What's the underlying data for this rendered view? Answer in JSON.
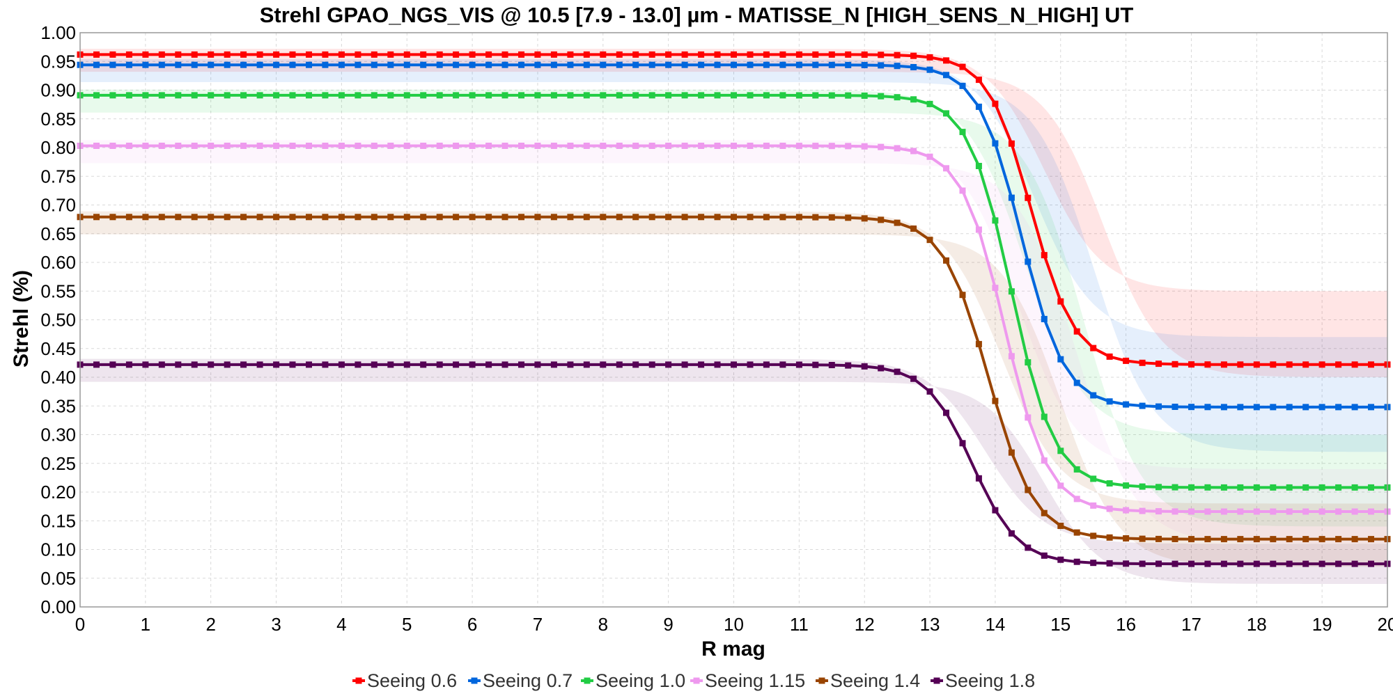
{
  "chart_data": {
    "type": "line",
    "title": "Strehl GPAO_NGS_VIS @ 10.5 [7.9 - 13.0] µm - MATISSE_N [HIGH_SENS_N_HIGH] UT",
    "xlabel": "R mag",
    "ylabel": "Strehl (%)",
    "xlim": [
      0,
      20
    ],
    "ylim": [
      0,
      1
    ],
    "xticks": [
      "0",
      "1",
      "2",
      "3",
      "4",
      "5",
      "6",
      "7",
      "8",
      "9",
      "10",
      "11",
      "12",
      "13",
      "14",
      "15",
      "16",
      "17",
      "18",
      "19",
      "20"
    ],
    "yticks": [
      "0.00",
      "0.05",
      "0.10",
      "0.15",
      "0.20",
      "0.25",
      "0.30",
      "0.35",
      "0.40",
      "0.45",
      "0.50",
      "0.55",
      "0.60",
      "0.65",
      "0.70",
      "0.75",
      "0.80",
      "0.85",
      "0.90",
      "0.95",
      "1.00"
    ],
    "grid": true,
    "legend_position": "bottom",
    "series": [
      {
        "name": "Seeing 0.6",
        "color": "#ff0000",
        "max": 0.962,
        "min": 0.422,
        "mid": 14.55,
        "width": 0.33,
        "band_hi": 0.55,
        "band_lo": 0.4
      },
      {
        "name": "Seeing 0.7",
        "color": "#0066dd",
        "max": 0.944,
        "min": 0.348,
        "mid": 14.4,
        "width": 0.33,
        "band_hi": 0.47,
        "band_lo": 0.27
      },
      {
        "name": "Seeing 1.0",
        "color": "#22cc44",
        "max": 0.891,
        "min": 0.208,
        "mid": 14.25,
        "width": 0.33,
        "band_hi": 0.3,
        "band_lo": 0.14
      },
      {
        "name": "Seeing 1.15",
        "color": "#ee99ee",
        "max": 0.803,
        "min": 0.166,
        "mid": 14.15,
        "width": 0.33,
        "band_hi": 0.24,
        "band_lo": 0.11
      },
      {
        "name": "Seeing 1.4",
        "color": "#994400",
        "max": 0.679,
        "min": 0.118,
        "mid": 13.9,
        "width": 0.35,
        "band_hi": 0.18,
        "band_lo": 0.07
      },
      {
        "name": "Seeing 1.8",
        "color": "#550055",
        "max": 0.422,
        "min": 0.075,
        "mid": 13.65,
        "width": 0.35,
        "band_hi": 0.11,
        "band_lo": 0.04
      }
    ]
  }
}
